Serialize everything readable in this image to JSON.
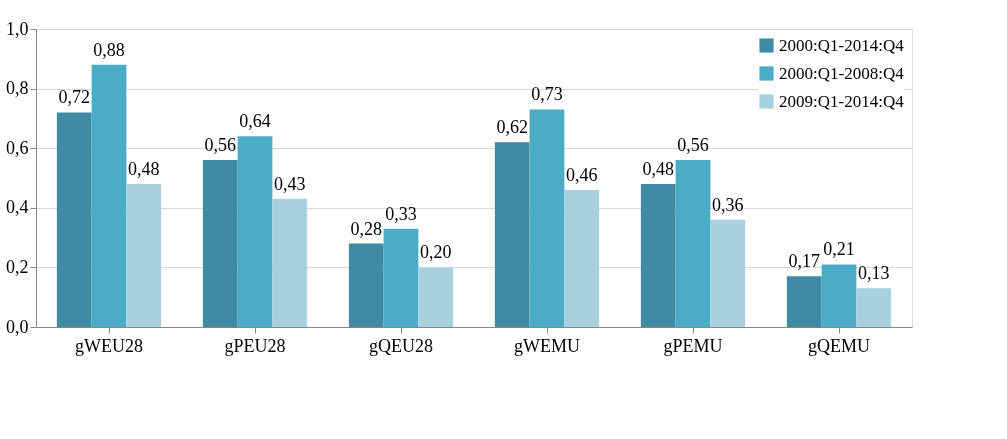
{
  "chart_data": {
    "type": "bar",
    "categories": [
      "gWEU28",
      "gPEU28",
      "gQEU28",
      "gWEMU",
      "gPEMU",
      "gQEMU"
    ],
    "series": [
      {
        "name": "2000:Q1-2014:Q4",
        "color": "#3e8ba3",
        "values": [
          0.72,
          0.56,
          0.28,
          0.62,
          0.48,
          0.17
        ]
      },
      {
        "name": "2000:Q1-2008:Q4",
        "color": "#4bacc6",
        "values": [
          0.88,
          0.64,
          0.33,
          0.73,
          0.56,
          0.21
        ]
      },
      {
        "name": "2009:Q1-2014:Q4",
        "color": "#a9d0de",
        "values": [
          0.48,
          0.43,
          0.2,
          0.46,
          0.36,
          0.13
        ]
      }
    ],
    "ylim": [
      0,
      1.0
    ],
    "yticks": [
      {
        "value": 0,
        "label": "0,0"
      },
      {
        "value": 0.2,
        "label": "0,2"
      },
      {
        "value": 0.4,
        "label": "0,4"
      },
      {
        "value": 0.6,
        "label": "0,6"
      },
      {
        "value": 0.8,
        "label": "0,8"
      },
      {
        "value": 1.0,
        "label": "1,0"
      }
    ],
    "value_labels": [
      [
        "0,72",
        "0,56",
        "0,28",
        "0,62",
        "0,48",
        "0,17"
      ],
      [
        "0,88",
        "0,64",
        "0,33",
        "0,73",
        "0,56",
        "0,21"
      ],
      [
        "0,48",
        "0,43",
        "0,20",
        "0,46",
        "0,36",
        "0,13"
      ]
    ],
    "grid": "y",
    "legend": "top right"
  }
}
